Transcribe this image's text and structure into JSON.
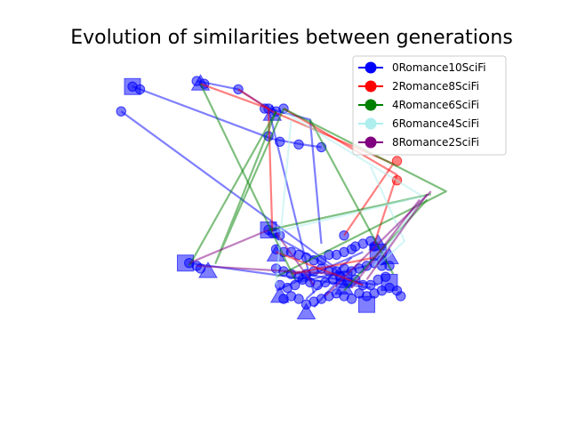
{
  "title": "Evolution of similarities between generations",
  "chart_data": {
    "type": "scatter",
    "title": "Evolution of similarities between generations",
    "axes_visible": false,
    "xlim": [
      0,
      1
    ],
    "ylim": [
      0,
      1
    ],
    "legend_position": "top-right",
    "series": [
      {
        "name": "0Romance10SciFi",
        "color": "#0000ff",
        "paths": [
          [
            [
              0.08,
              0.97
            ],
            [
              0.1,
              0.96
            ],
            [
              0.45,
              0.78
            ],
            [
              0.53,
              0.76
            ],
            [
              0.58,
              0.75
            ]
          ],
          [
            [
              0.05,
              0.88
            ],
            [
              0.62,
              0.31
            ]
          ],
          [
            [
              0.25,
              0.99
            ],
            [
              0.36,
              0.96
            ],
            [
              0.44,
              0.89
            ],
            [
              0.56,
              0.22
            ]
          ],
          [
            [
              0.44,
              0.89
            ],
            [
              0.55,
              0.85
            ],
            [
              0.58,
              0.4
            ]
          ],
          [
            [
              0.44,
              0.44
            ],
            [
              0.69,
              0.25
            ]
          ],
          [
            [
              0.23,
              0.33
            ],
            [
              0.71,
              0.24
            ]
          ],
          [
            [
              0.48,
              0.3
            ],
            [
              0.73,
              0.25
            ]
          ],
          [
            [
              0.46,
              0.23
            ],
            [
              0.69,
              0.37
            ]
          ],
          [
            [
              0.56,
              0.17
            ],
            [
              0.64,
              0.29
            ]
          ],
          [
            [
              0.52,
              0.26
            ],
            [
              0.7,
              0.32
            ]
          ],
          [
            [
              0.54,
              0.2
            ],
            [
              0.66,
              0.35
            ]
          ]
        ],
        "points": [
          [
            0.08,
            0.97
          ],
          [
            0.1,
            0.96
          ],
          [
            0.05,
            0.88
          ],
          [
            0.27,
            0.98
          ],
          [
            0.25,
            0.99
          ],
          [
            0.36,
            0.96
          ],
          [
            0.43,
            0.89
          ],
          [
            0.44,
            0.89
          ],
          [
            0.46,
            0.88
          ],
          [
            0.48,
            0.89
          ],
          [
            0.44,
            0.79
          ],
          [
            0.47,
            0.77
          ],
          [
            0.52,
            0.76
          ],
          [
            0.58,
            0.75
          ],
          [
            0.64,
            0.43
          ],
          [
            0.44,
            0.45
          ],
          [
            0.46,
            0.44
          ],
          [
            0.47,
            0.43
          ],
          [
            0.45,
            0.44
          ],
          [
            0.23,
            0.33
          ],
          [
            0.25,
            0.32
          ],
          [
            0.26,
            0.31
          ],
          [
            0.46,
            0.38
          ],
          [
            0.48,
            0.37
          ],
          [
            0.5,
            0.37
          ],
          [
            0.52,
            0.36
          ],
          [
            0.54,
            0.35
          ],
          [
            0.56,
            0.34
          ],
          [
            0.58,
            0.34
          ],
          [
            0.6,
            0.36
          ],
          [
            0.62,
            0.36
          ],
          [
            0.64,
            0.37
          ],
          [
            0.66,
            0.38
          ],
          [
            0.67,
            0.39
          ],
          [
            0.69,
            0.4
          ],
          [
            0.71,
            0.41
          ],
          [
            0.72,
            0.39
          ],
          [
            0.74,
            0.32
          ],
          [
            0.46,
            0.31
          ],
          [
            0.48,
            0.3
          ],
          [
            0.5,
            0.29
          ],
          [
            0.52,
            0.28
          ],
          [
            0.54,
            0.29
          ],
          [
            0.56,
            0.3
          ],
          [
            0.58,
            0.31
          ],
          [
            0.6,
            0.3
          ],
          [
            0.62,
            0.3
          ],
          [
            0.64,
            0.31
          ],
          [
            0.66,
            0.3
          ],
          [
            0.68,
            0.31
          ],
          [
            0.7,
            0.32
          ],
          [
            0.72,
            0.33
          ],
          [
            0.74,
            0.34
          ],
          [
            0.76,
            0.32
          ],
          [
            0.47,
            0.25
          ],
          [
            0.49,
            0.24
          ],
          [
            0.51,
            0.25
          ],
          [
            0.53,
            0.27
          ],
          [
            0.55,
            0.26
          ],
          [
            0.57,
            0.25
          ],
          [
            0.59,
            0.26
          ],
          [
            0.61,
            0.27
          ],
          [
            0.63,
            0.28
          ],
          [
            0.65,
            0.26
          ],
          [
            0.67,
            0.27
          ],
          [
            0.69,
            0.25
          ],
          [
            0.71,
            0.25
          ],
          [
            0.73,
            0.27
          ],
          [
            0.75,
            0.28
          ],
          [
            0.48,
            0.2
          ],
          [
            0.5,
            0.21
          ],
          [
            0.52,
            0.2
          ],
          [
            0.54,
            0.18
          ],
          [
            0.56,
            0.19
          ],
          [
            0.58,
            0.2
          ],
          [
            0.6,
            0.21
          ],
          [
            0.62,
            0.22
          ],
          [
            0.64,
            0.21
          ],
          [
            0.66,
            0.2
          ],
          [
            0.68,
            0.22
          ],
          [
            0.7,
            0.21
          ],
          [
            0.72,
            0.22
          ],
          [
            0.74,
            0.23
          ],
          [
            0.76,
            0.24
          ],
          [
            0.78,
            0.23
          ],
          [
            0.79,
            0.21
          ]
        ],
        "squares": [
          [
            0.08,
            0.97
          ],
          [
            0.44,
            0.45
          ],
          [
            0.22,
            0.33
          ],
          [
            0.64,
            0.27
          ],
          [
            0.7,
            0.18
          ],
          [
            0.73,
            0.37
          ],
          [
            0.76,
            0.26
          ]
        ],
        "triangles": [
          [
            0.26,
            0.98
          ],
          [
            0.45,
            0.87
          ],
          [
            0.46,
            0.36
          ],
          [
            0.47,
            0.21
          ],
          [
            0.54,
            0.15
          ],
          [
            0.73,
            0.4
          ],
          [
            0.76,
            0.35
          ],
          [
            0.28,
            0.3
          ],
          [
            0.64,
            0.24
          ]
        ]
      },
      {
        "name": "2Romance8SciFi",
        "color": "#ff0000",
        "paths": [
          [
            [
              0.26,
              0.98
            ],
            [
              0.44,
              0.89
            ]
          ],
          [
            [
              0.36,
              0.96
            ],
            [
              0.45,
              0.88
            ],
            [
              0.77,
              0.69
            ],
            [
              0.64,
              0.43
            ]
          ],
          [
            [
              0.48,
              0.89
            ],
            [
              0.78,
              0.65
            ],
            [
              0.72,
              0.4
            ]
          ],
          [
            [
              0.44,
              0.89
            ],
            [
              0.45,
              0.44
            ]
          ],
          [
            [
              0.46,
              0.37
            ],
            [
              0.69,
              0.25
            ]
          ],
          [
            [
              0.5,
              0.29
            ],
            [
              0.72,
              0.35
            ]
          ]
        ],
        "points": [
          [
            0.78,
            0.7
          ],
          [
            0.78,
            0.63
          ]
        ]
      },
      {
        "name": "4Romance6SciFi",
        "color": "#008000",
        "paths": [
          [
            [
              0.26,
              0.98
            ],
            [
              0.51,
              0.27
            ]
          ],
          [
            [
              0.48,
              0.89
            ],
            [
              0.3,
              0.33
            ],
            [
              0.46,
              0.88
            ]
          ],
          [
            [
              0.46,
              0.88
            ],
            [
              0.23,
              0.32
            ]
          ],
          [
            [
              0.48,
              0.89
            ],
            [
              0.91,
              0.59
            ],
            [
              0.46,
              0.28
            ]
          ],
          [
            [
              0.44,
              0.45
            ],
            [
              0.87,
              0.58
            ]
          ],
          [
            [
              0.55,
              0.85
            ],
            [
              0.77,
              0.29
            ]
          ],
          [
            [
              0.86,
              0.56
            ],
            [
              0.64,
              0.23
            ]
          ]
        ],
        "points": []
      },
      {
        "name": "6Romance4SciFi",
        "color": "#aeeeee",
        "paths": [
          [
            [
              0.5,
              0.85
            ],
            [
              0.46,
              0.25
            ]
          ],
          [
            [
              0.48,
              0.88
            ],
            [
              0.85,
              0.57
            ],
            [
              0.72,
              0.32
            ]
          ],
          [
            [
              0.45,
              0.44
            ],
            [
              0.84,
              0.57
            ]
          ],
          [
            [
              0.71,
              0.68
            ],
            [
              0.8,
              0.41
            ],
            [
              0.72,
              0.31
            ]
          ]
        ],
        "points": []
      },
      {
        "name": "8Romance2SciFi",
        "color": "#800080",
        "paths": [
          [
            [
              0.23,
              0.33
            ],
            [
              0.44,
              0.45
            ]
          ],
          [
            [
              0.46,
              0.44
            ],
            [
              0.56,
              0.25
            ]
          ],
          [
            [
              0.25,
              0.32
            ],
            [
              0.62,
              0.29
            ]
          ],
          [
            [
              0.86,
              0.58
            ],
            [
              0.7,
              0.27
            ]
          ],
          [
            [
              0.84,
              0.56
            ],
            [
              0.66,
              0.24
            ]
          ],
          [
            [
              0.87,
              0.59
            ],
            [
              0.59,
              0.21
            ]
          ]
        ],
        "points": []
      }
    ]
  }
}
